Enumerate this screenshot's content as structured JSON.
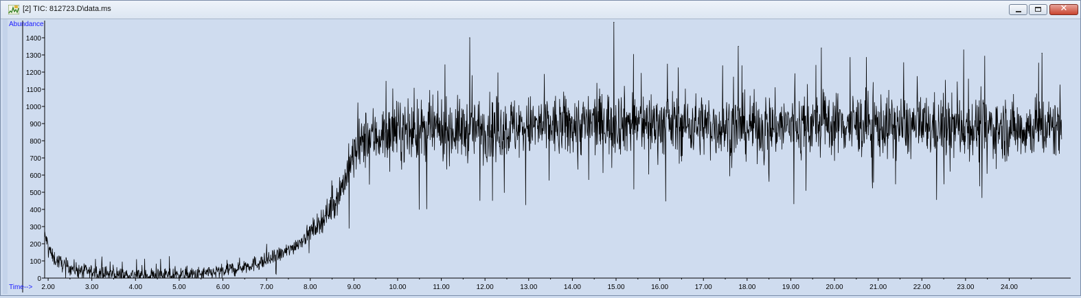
{
  "window": {
    "title": "[2] TIC: 812723.D\\data.ms",
    "buttons": {
      "minimize": "minimize",
      "maximize": "maximize",
      "close": "close"
    },
    "close_color": "#c9452f"
  },
  "chart_data": {
    "type": "line",
    "title": "",
    "ylabel": "Abundance",
    "xlabel": "Time-->",
    "xlim": [
      1.92,
      25.25
    ],
    "ylim": [
      0,
      1500
    ],
    "x_ticks": [
      "2.00",
      "3.00",
      "4.00",
      "5.00",
      "6.00",
      "7.00",
      "8.00",
      "9.00",
      "10.00",
      "11.00",
      "12.00",
      "13.00",
      "14.00",
      "15.00",
      "16.00",
      "17.00",
      "18.00",
      "19.00",
      "20.00",
      "21.00",
      "22.00",
      "23.00",
      "24.00"
    ],
    "y_ticks": [
      "0",
      "100",
      "200",
      "300",
      "400",
      "500",
      "600",
      "700",
      "800",
      "900",
      "1000",
      "1100",
      "1200",
      "1300",
      "1400"
    ],
    "grid": false,
    "line_color": "#000000",
    "background_color": "#cfdcef",
    "axis_label_color": "#1a1aff",
    "series": [
      {
        "baseline": {
          "x": [
            1.92,
            2.1,
            2.4,
            2.8,
            3.5,
            4.5,
            5.5,
            6.0,
            6.5,
            7.0,
            7.5,
            7.8,
            8.0,
            8.2,
            8.4,
            8.6,
            8.8,
            9.0,
            9.3,
            10.0,
            11.0,
            12.0,
            13.0,
            14.0,
            15.0,
            16.0,
            17.0,
            18.0,
            19.0,
            20.0,
            21.0,
            22.0,
            23.0,
            24.0,
            25.2
          ],
          "y": [
            250,
            120,
            70,
            40,
            20,
            15,
            20,
            40,
            70,
            100,
            160,
            220,
            270,
            320,
            380,
            460,
            580,
            720,
            820,
            850,
            860,
            870,
            880,
            890,
            910,
            900,
            890,
            880,
            890,
            900,
            890,
            880,
            880,
            870,
            880
          ]
        },
        "peaks": [
          {
            "x": 11.65,
            "y": 1400
          },
          {
            "x": 14.95,
            "y": 1490
          },
          {
            "x": 17.8,
            "y": 1350
          },
          {
            "x": 19.7,
            "y": 1340
          },
          {
            "x": 24.75,
            "y": 1310
          }
        ]
      }
    ]
  }
}
